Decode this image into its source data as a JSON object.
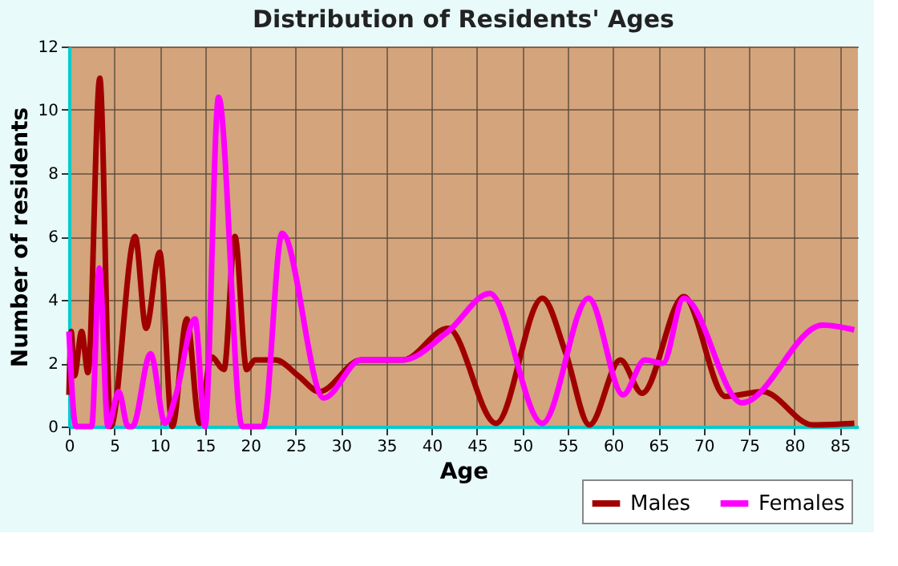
{
  "chart_data": {
    "type": "line",
    "title": "Distribution of Residents' Ages",
    "xlabel": "Age",
    "ylabel": "Number of residents",
    "xlim": [
      0,
      87
    ],
    "xticks": [
      0,
      5,
      10,
      15,
      20,
      25,
      30,
      35,
      40,
      45,
      50,
      55,
      60,
      65,
      70,
      75,
      80,
      85
    ],
    "ylim": [
      0,
      12
    ],
    "yticks": [
      0,
      2,
      4,
      6,
      8,
      10,
      12
    ],
    "grid": true,
    "legend": "bottom right",
    "line_style": "solid",
    "marker": "none",
    "series": [
      {
        "name": "Males",
        "color": "#a00000",
        "x": [
          0,
          0.25,
          0.6,
          1.4,
          2.1,
          3.4,
          4.6,
          7.3,
          8.5,
          10,
          11.4,
          13,
          14.4,
          15.7,
          17.1,
          18.3,
          19.6,
          20.5,
          22.8,
          25.3,
          27.6,
          32.2,
          36.8,
          41.8,
          47.1,
          52.2,
          54.8,
          57.4,
          60.8,
          63.2,
          67.8,
          72.4,
          76.5,
          82,
          86.6
        ],
        "values": [
          1,
          3,
          1.6,
          3,
          1.7,
          11,
          0,
          6,
          3.1,
          5.5,
          0,
          3.4,
          0.1,
          2.2,
          1.8,
          6,
          1.8,
          2.1,
          2.1,
          1.6,
          1.1,
          2.1,
          2.1,
          3.1,
          0.1,
          4.05,
          2.3,
          0.05,
          2.1,
          1.05,
          4.1,
          0.95,
          1.1,
          0.05,
          0.1
        ]
      },
      {
        "name": "Females",
        "color": "#ff00ff",
        "x": [
          0,
          0.6,
          0.8,
          2.5,
          3.35,
          4.3,
          5.5,
          6.5,
          7,
          9,
          10.6,
          11.8,
          13.9,
          15,
          16.5,
          19.1,
          21.4,
          23.5,
          28.1,
          32.2,
          36.8,
          41.8,
          46.4,
          52.2,
          57.3,
          61.1,
          63.5,
          65.5,
          67.8,
          74.2,
          83.1,
          86.6
        ],
        "values": [
          3,
          0.2,
          0,
          0,
          5,
          0,
          1.1,
          0,
          0,
          2.3,
          0.1,
          1,
          3.4,
          0,
          10.4,
          0,
          0,
          6.1,
          0.9,
          2.1,
          2.1,
          3.0,
          4.2,
          0.1,
          4.05,
          1,
          2.1,
          2,
          4.05,
          0.75,
          3.2,
          3.05
        ]
      }
    ]
  }
}
